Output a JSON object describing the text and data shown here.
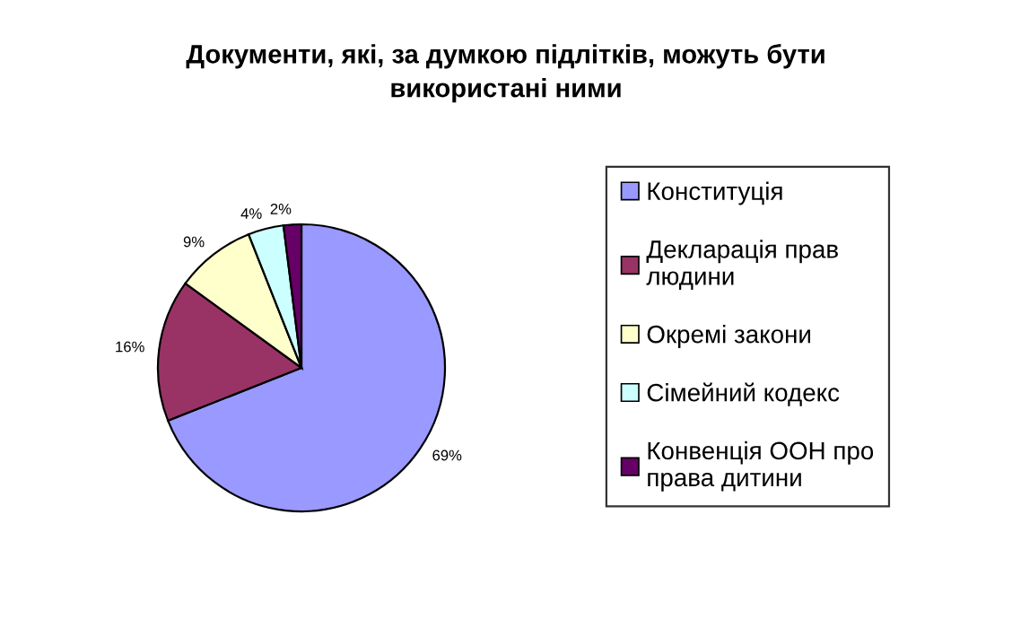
{
  "chart_data": {
    "type": "pie",
    "title": "Документи, які, за думкою підлітків, можуть бути\nвикористані ними",
    "categories": [
      "Конституція",
      "Декларація прав\nлюдини",
      "Окремі закони",
      "Сімейний кодекс",
      "Конвенція ООН про\nправа дитини"
    ],
    "values": [
      69,
      16,
      9,
      4,
      2
    ],
    "colors": [
      "#9999ff",
      "#993366",
      "#ffffcc",
      "#ccffff",
      "#660066"
    ],
    "value_labels": [
      "69%",
      "16%",
      "9%",
      "4%",
      "2%"
    ],
    "legend": "right"
  }
}
